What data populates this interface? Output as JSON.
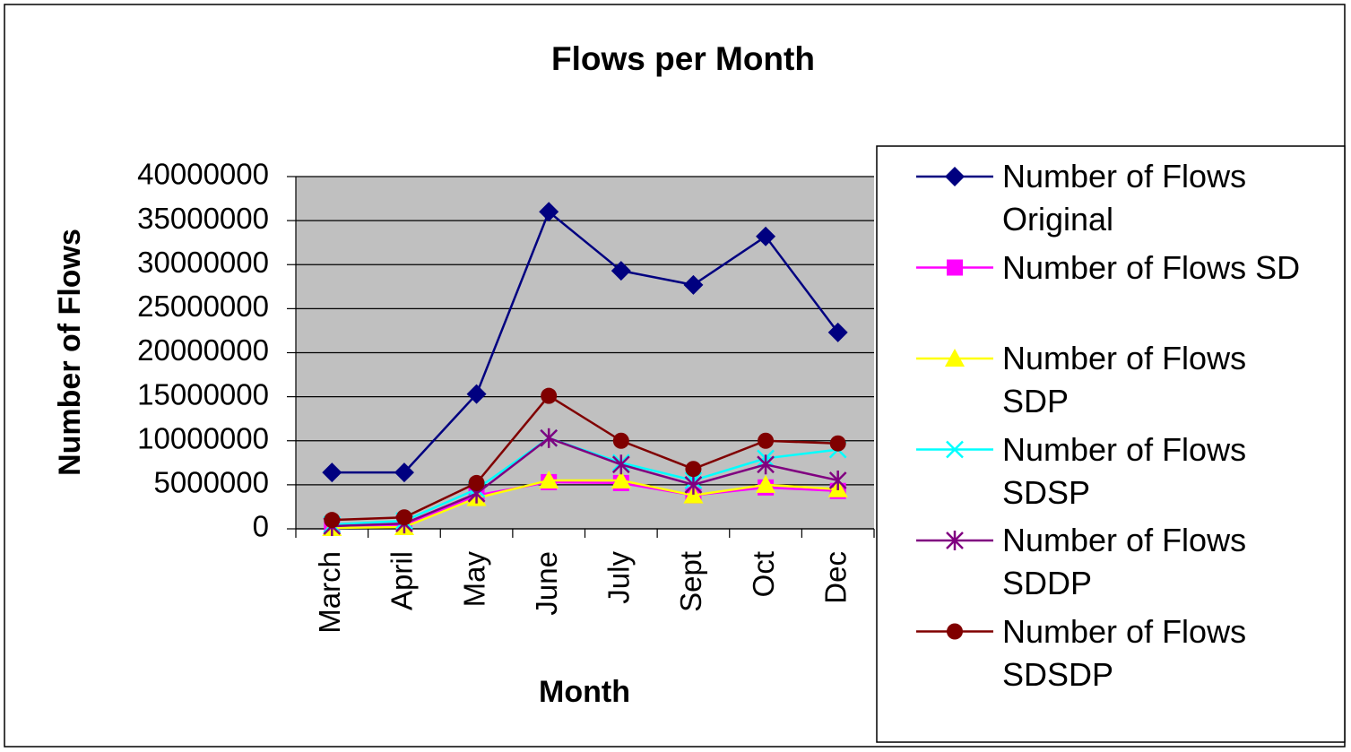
{
  "chart_data": {
    "type": "line",
    "title": "Flows per Month",
    "xlabel": "Month",
    "ylabel": "Number of Flows",
    "categories": [
      "March",
      "April",
      "May",
      "June",
      "July",
      "Sept",
      "Oct",
      "Dec"
    ],
    "ylim": [
      0,
      40000000
    ],
    "yticks": [
      0,
      5000000,
      10000000,
      15000000,
      20000000,
      25000000,
      30000000,
      35000000,
      40000000
    ],
    "grid": true,
    "series": [
      {
        "name": "Number of Flows Original",
        "color": "#000080",
        "marker": "diamond",
        "values": [
          6400000,
          6400000,
          15300000,
          36000000,
          29300000,
          27700000,
          33200000,
          22300000
        ]
      },
      {
        "name": "Number of Flows SD",
        "color": "#ff00ff",
        "marker": "square",
        "values": [
          200000,
          400000,
          3800000,
          5300000,
          5200000,
          3800000,
          4700000,
          4300000
        ]
      },
      {
        "name": "Number of Flows SDP",
        "color": "#ffff00",
        "marker": "triangle",
        "values": [
          100000,
          200000,
          3500000,
          5500000,
          5500000,
          3800000,
          5000000,
          4500000
        ]
      },
      {
        "name": "Number of Flows SDSP",
        "color": "#00ffff",
        "marker": "x",
        "values": [
          500000,
          900000,
          4500000,
          10300000,
          7500000,
          5500000,
          8000000,
          9000000
        ]
      },
      {
        "name": "Number of Flows SDDP",
        "color": "#800080",
        "marker": "star",
        "values": [
          300000,
          600000,
          4000000,
          10300000,
          7300000,
          5000000,
          7300000,
          5500000
        ]
      },
      {
        "name": "Number of Flows SDSDP",
        "color": "#800000",
        "marker": "circle",
        "values": [
          1000000,
          1300000,
          5200000,
          15100000,
          10000000,
          6800000,
          10000000,
          9700000
        ]
      }
    ]
  }
}
